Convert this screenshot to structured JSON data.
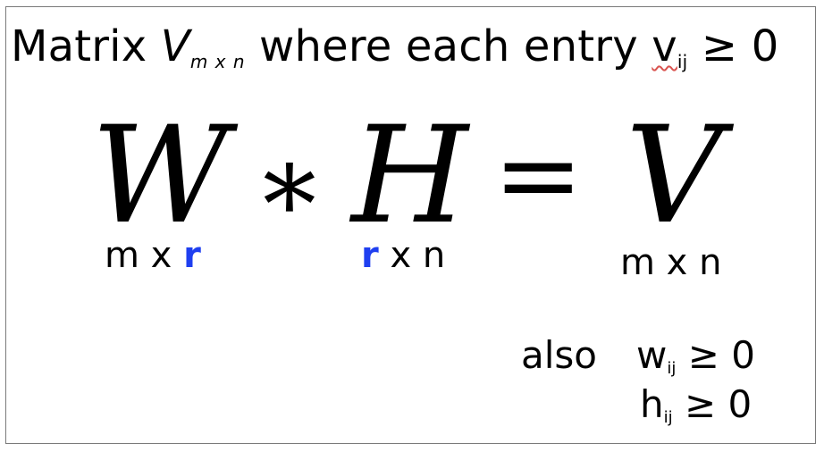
{
  "title": {
    "prefix": "Matrix ",
    "matrix_var": "V",
    "matrix_dims": "m x n",
    "middle": "  where each entry ",
    "entry_var": "v",
    "entry_sub": "ij",
    "condition": " ≥ 0"
  },
  "equation": {
    "w": "W",
    "times": "∗",
    "h": "H",
    "equals": "=",
    "v": "V"
  },
  "dims": {
    "w": {
      "pre": "m x ",
      "r": "r"
    },
    "h": {
      "r": "r",
      "post": " x n"
    },
    "v": "m x n"
  },
  "also": {
    "label": "also",
    "w_var": "w",
    "w_sub": "ij",
    "w_cond": " ≥ 0",
    "h_var": "h",
    "h_sub": "ij",
    "h_cond": " ≥ 0"
  },
  "colors": {
    "accent": "#1f3ff0",
    "frame": "#7a7a7a",
    "spell_underline": "#d9534f"
  }
}
